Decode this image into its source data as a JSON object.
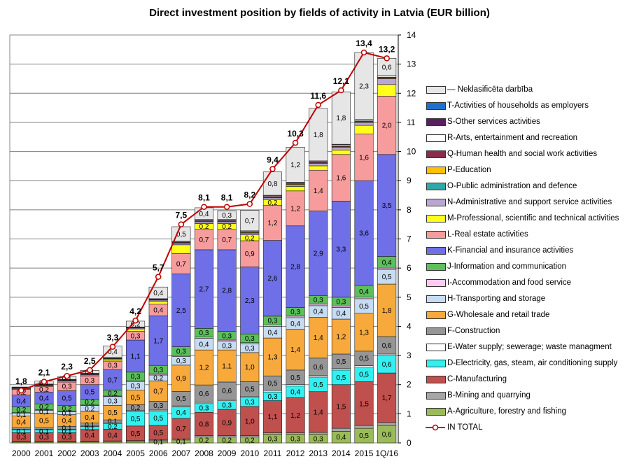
{
  "chart_data": {
    "type": "bar",
    "title": "Direct investment position by fields  of activity  in Latvia (EUR billion)",
    "categories": [
      "2000",
      "2001",
      "2002",
      "2003",
      "2004",
      "2005",
      "2006",
      "2007",
      "2008",
      "2009",
      "2010",
      "2011",
      "2012",
      "2013",
      "2014",
      "2015",
      "1Q/16"
    ],
    "ylim": [
      0,
      14
    ],
    "y_ticks": [
      "0",
      "1",
      "2",
      "3",
      "4",
      "5",
      "6",
      "7",
      "8",
      "9",
      "10",
      "11",
      "12",
      "13",
      "14"
    ],
    "totals": [
      1.8,
      2.1,
      2.3,
      2.5,
      3.3,
      4.2,
      5.7,
      7.5,
      8.1,
      8.1,
      8.2,
      9.4,
      10.3,
      11.6,
      12.1,
      13.4,
      13.2
    ],
    "total_labels": [
      "1,8",
      "2,1",
      "2,3",
      "2,5",
      "3,3",
      "4,2",
      "5,7",
      "7,5",
      "8,1",
      "8,1",
      "8,2",
      "9,4",
      "10,3",
      "11,6",
      "12,1",
      "13,4",
      "13,2"
    ],
    "series": [
      {
        "name": "A-Agriculture, forestry and fishing",
        "color": "#9BBB59",
        "values": [
          0.03,
          0.03,
          0.03,
          0.04,
          0.04,
          0.05,
          0.07,
          0.1,
          0.2,
          0.2,
          0.2,
          0.3,
          0.3,
          0.3,
          0.4,
          0.5,
          0.6
        ],
        "labels": [
          "",
          "",
          "",
          "",
          "",
          "",
          "0,1",
          "0,1",
          "0,2",
          "0,2",
          "0,2",
          "0,3",
          "0,3",
          "0,3",
          "0,4",
          "0,5",
          "0,6"
        ]
      },
      {
        "name": "B-Mining and quarrying",
        "color": "#A6A6A6",
        "values": [
          0.02,
          0.02,
          0.02,
          0.02,
          0.03,
          0.03,
          0.03,
          0.04,
          0.05,
          0.05,
          0.05,
          0.05,
          0.05,
          0.06,
          0.1,
          0.1,
          0.1
        ],
        "labels": [
          "",
          "",
          "",
          "",
          "",
          "",
          "",
          "",
          "",
          "",
          "",
          "",
          "",
          "",
          "",
          "",
          ""
        ]
      },
      {
        "name": "C-Manufacturing",
        "color": "#C0504D",
        "values": [
          0.3,
          0.3,
          0.3,
          0.4,
          0.4,
          0.5,
          0.5,
          0.7,
          0.8,
          0.9,
          1.0,
          1.1,
          1.2,
          1.4,
          1.5,
          1.5,
          1.7
        ],
        "labels": [
          "0,3",
          "0,3",
          "0,3",
          "0,4",
          "0,4",
          "0,5",
          "0,5",
          "0,7",
          "0,8",
          "0,9",
          "1,0",
          "1,1",
          "1,2",
          "1,4",
          "1,5",
          "1,5",
          "1,7"
        ]
      },
      {
        "name": "D-Electricity, gas, steam, air conditioning supply",
        "color": "#33F0F0",
        "values": [
          0.1,
          0.1,
          0.1,
          0.1,
          0.2,
          0.5,
          0.5,
          0.4,
          0.3,
          0.3,
          0.3,
          0.3,
          0.4,
          0.5,
          0.5,
          0.5,
          0.6
        ],
        "labels": [
          "0,1",
          "0,1",
          "0,1",
          "0,1",
          "0,2",
          "0,5",
          "0,5",
          "0,4",
          "0,3",
          "0,3",
          "0,3",
          "0,3",
          "0,4",
          "0,5",
          "0,5",
          "0,5",
          "0,6"
        ]
      },
      {
        "name": "E-Water supply; sewerage; waste managment",
        "color": "#FFFFFF",
        "values": [
          0.02,
          0.02,
          0.02,
          0.02,
          0.02,
          0.03,
          0.03,
          0.03,
          0.04,
          0.04,
          0.05,
          0.05,
          0.05,
          0.05,
          0.05,
          0.05,
          0.05
        ],
        "labels": [
          "",
          "",
          "",
          "",
          "",
          "",
          "",
          "",
          "",
          "",
          "",
          "",
          "",
          "",
          "",
          "",
          ""
        ]
      },
      {
        "name": "F-Construction",
        "color": "#969696",
        "values": [
          0.05,
          0.05,
          0.1,
          0.1,
          0.1,
          0.2,
          0.3,
          0.5,
          0.6,
          0.6,
          0.5,
          0.5,
          0.5,
          0.6,
          0.5,
          0.5,
          0.6
        ],
        "labels": [
          "",
          "",
          "0,1",
          "0,1",
          "0,1",
          "0,2",
          "0,3",
          "0,5",
          "0,6",
          "0,6",
          "0,5",
          "0,5",
          "0,5",
          "0,6",
          "0,5",
          "0,5",
          "0,6"
        ]
      },
      {
        "name": "G-Wholesale and retail trade",
        "color": "#F8A93C",
        "values": [
          0.4,
          0.5,
          0.4,
          0.4,
          0.5,
          0.5,
          0.7,
          0.9,
          1.2,
          1.1,
          1.0,
          1.3,
          1.4,
          1.4,
          1.2,
          1.3,
          1.8
        ],
        "labels": [
          "0,4",
          "0,5",
          "0,4",
          "0,4",
          "0,5",
          "0,5",
          "0,7",
          "0,9",
          "1,2",
          "1,1",
          "1,0",
          "1,3",
          "1,4",
          "1,4",
          "1,2",
          "1,3",
          "1,8"
        ]
      },
      {
        "name": "H-Transporting and storage",
        "color": "#C6DCF2",
        "values": [
          0.1,
          0.1,
          0.1,
          0.2,
          0.3,
          0.3,
          0.2,
          0.3,
          0.4,
          0.3,
          0.3,
          0.4,
          0.4,
          0.4,
          0.4,
          0.5,
          0.5
        ],
        "labels": [
          "0,1",
          "0,1",
          "0,1",
          "0,2",
          "0,3",
          "0,3",
          "0,2",
          "0,3",
          "0,4",
          "0,3",
          "0,3",
          "0,4",
          "0,4",
          "0,4",
          "0,4",
          "0,5",
          "0,5"
        ]
      },
      {
        "name": "I-Accommodation and food service",
        "color": "#FFC9F2",
        "values": [
          0.02,
          0.02,
          0.02,
          0.02,
          0.02,
          0.02,
          0.03,
          0.03,
          0.04,
          0.04,
          0.04,
          0.05,
          0.05,
          0.05,
          0.05,
          0.05,
          0.05
        ],
        "labels": [
          "",
          "",
          "",
          "",
          "",
          "",
          "",
          "",
          "",
          "",
          "",
          "",
          "",
          "",
          "",
          "",
          ""
        ]
      },
      {
        "name": "J-Information and communication",
        "color": "#5CBF5C",
        "values": [
          0.2,
          0.2,
          0.2,
          0.2,
          0.2,
          0.3,
          0.3,
          0.3,
          0.3,
          0.3,
          0.3,
          0.3,
          0.3,
          0.3,
          0.3,
          0.4,
          0.4
        ],
        "labels": [
          "0,2",
          "0,2",
          "0,2",
          "0,2",
          "0,2",
          "0,3",
          "0,3",
          "0,3",
          "0,3",
          "0,3",
          "0,3",
          "0,3",
          "0,3",
          "0,3",
          "0,3",
          "0,4",
          "0,4"
        ]
      },
      {
        "name": "K-Financial and insurance activities",
        "color": "#6F6FE8",
        "values": [
          0.4,
          0.4,
          0.5,
          0.5,
          0.7,
          1.1,
          1.7,
          2.5,
          2.7,
          2.8,
          2.3,
          2.6,
          2.8,
          2.9,
          3.3,
          3.6,
          3.5
        ],
        "labels": [
          "0,4",
          "0,4",
          "0,5",
          "0,5",
          "0,7",
          "1,1",
          "1,7",
          "2,5",
          "2,7",
          "2,8",
          "2,3",
          "2,6",
          "2,8",
          "2,9",
          "3,3",
          "3,6",
          "3,5"
        ]
      },
      {
        "name": "L-Real estate activities",
        "color": "#F79C9C",
        "values": [
          0.2,
          0.2,
          0.3,
          0.3,
          0.3,
          0.3,
          0.4,
          0.7,
          0.7,
          0.7,
          0.9,
          1.2,
          1.2,
          1.4,
          1.6,
          1.6,
          2.0
        ],
        "labels": [
          "0,2",
          "0,2",
          "0,3",
          "0,3",
          "0,3",
          "0,3",
          "0,4",
          "0,7",
          "0,7",
          "0,7",
          "0,9",
          "1,2",
          "1,2",
          "1,4",
          "1,6",
          "1,6",
          "2,0"
        ]
      },
      {
        "name": "M-Professional, scientific and technical activities",
        "color": "#FFFF1A",
        "values": [
          0.02,
          0.02,
          0.03,
          0.03,
          0.05,
          0.08,
          0.1,
          0.3,
          0.2,
          0.2,
          0.2,
          0.2,
          0.15,
          0.15,
          0.15,
          0.3,
          0.4
        ],
        "labels": [
          "",
          "",
          "",
          "",
          "",
          "",
          "",
          "",
          "0,2",
          "0,2",
          "0,2",
          "0,2",
          "",
          "",
          "",
          "",
          ""
        ]
      },
      {
        "name": "N-Administrative and support service activities",
        "color": "#B9A6D3",
        "values": [
          0.02,
          0.02,
          0.02,
          0.02,
          0.03,
          0.03,
          0.04,
          0.05,
          0.06,
          0.06,
          0.06,
          0.06,
          0.06,
          0.08,
          0.1,
          0.1,
          0.2
        ],
        "labels": [
          "",
          "",
          "",
          "",
          "",
          "",
          "",
          "",
          "",
          "",
          "",
          "",
          "",
          "",
          "",
          "",
          ""
        ]
      },
      {
        "name": "O-Public administration and defence",
        "color": "#2FA8A8",
        "values": [
          0.0,
          0.0,
          0.0,
          0.0,
          0.0,
          0.0,
          0.0,
          0.0,
          0.0,
          0.0,
          0.0,
          0.0,
          0.0,
          0.0,
          0.0,
          0.0,
          0.0
        ],
        "labels": [
          "",
          "",
          "",
          "",
          "",
          "",
          "",
          "",
          "",
          "",
          "",
          "",
          "",
          "",
          "",
          "",
          ""
        ]
      },
      {
        "name": "P-Education",
        "color": "#FFC000",
        "values": [
          0.01,
          0.01,
          0.01,
          0.01,
          0.01,
          0.01,
          0.01,
          0.02,
          0.02,
          0.02,
          0.02,
          0.02,
          0.02,
          0.02,
          0.02,
          0.02,
          0.02
        ],
        "labels": [
          "",
          "",
          "",
          "",
          "",
          "",
          "",
          "",
          "",
          "",
          "",
          "",
          "",
          "",
          "",
          "",
          ""
        ]
      },
      {
        "name": "Q-Human health and social work activities",
        "color": "#8B2C4A",
        "values": [
          0.01,
          0.01,
          0.01,
          0.01,
          0.01,
          0.01,
          0.02,
          0.02,
          0.02,
          0.02,
          0.02,
          0.03,
          0.03,
          0.03,
          0.03,
          0.03,
          0.03
        ],
        "labels": [
          "",
          "",
          "",
          "",
          "",
          "",
          "",
          "",
          "",
          "",
          "",
          "",
          "",
          "",
          "",
          "",
          ""
        ]
      },
      {
        "name": "R-Arts,  entertainment and recreation",
        "color": "#FFFFFF",
        "values": [
          0.01,
          0.01,
          0.01,
          0.01,
          0.01,
          0.01,
          0.01,
          0.02,
          0.03,
          0.03,
          0.03,
          0.03,
          0.03,
          0.03,
          0.04,
          0.04,
          0.04
        ],
        "labels": [
          "",
          "",
          "",
          "",
          "",
          "",
          "",
          "",
          "",
          "",
          "",
          "",
          "",
          "",
          "",
          "",
          ""
        ]
      },
      {
        "name": "S-Other services activities",
        "color": "#5A1F5E",
        "values": [
          0.01,
          0.01,
          0.01,
          0.01,
          0.01,
          0.01,
          0.01,
          0.01,
          0.01,
          0.01,
          0.01,
          0.01,
          0.01,
          0.01,
          0.01,
          0.01,
          0.01
        ],
        "labels": [
          "",
          "",
          "",
          "",
          "",
          "",
          "",
          "",
          "",
          "",
          "",
          "",
          "",
          "",
          "",
          "",
          ""
        ]
      },
      {
        "name": "T-Activities of households as employers",
        "color": "#1F6FD1",
        "values": [
          0,
          0,
          0,
          0,
          0,
          0,
          0,
          0,
          0,
          0,
          0,
          0,
          0,
          0,
          0,
          0,
          0
        ],
        "labels": [
          "",
          "",
          "",
          "",
          "",
          "",
          "",
          "",
          "",
          "",
          "",
          "",
          "",
          "",
          "",
          "",
          ""
        ]
      },
      {
        "name": "Neklasificēta darbība",
        "color": "#E6E6E6",
        "values": [
          0.0,
          0.1,
          0.1,
          0.1,
          0.4,
          0.2,
          0.4,
          0.5,
          0.4,
          0.3,
          0.7,
          0.8,
          1.2,
          1.8,
          1.8,
          2.3,
          0.6
        ],
        "labels": [
          "",
          "0,1",
          "0,1",
          "0,1",
          "0,4",
          "0,2",
          "0,4",
          "0,5",
          "0,4",
          "0,3",
          "0,7",
          "0,8",
          "1,2",
          "1,8",
          "1,8",
          "2,3",
          "0,6"
        ]
      }
    ],
    "line_series": {
      "name": "IN TOTAL",
      "color": "#C00000"
    },
    "legend_order": [
      "Neklasificēta darbība",
      "T-Activities of households as employers",
      "S-Other services activities",
      "R-Arts,  entertainment and recreation",
      "Q-Human health and social work activities",
      "P-Education",
      "O-Public administration and defence",
      "N-Administrative and support service activities",
      "M-Professional, scientific and technical activities",
      "L-Real estate activities",
      "K-Financial and insurance activities",
      "J-Information and communication",
      "I-Accommodation and food service",
      "H-Transporting and storage",
      "G-Wholesale and retail trade",
      "F-Construction",
      "E-Water supply; sewerage; waste managment",
      "D-Electricity, gas, steam, air conditioning supply",
      "C-Manufacturing",
      "B-Mining and quarrying",
      "A-Agriculture, forestry and fishing",
      "IN TOTAL"
    ],
    "legend_placement": "right",
    "grid": true
  }
}
